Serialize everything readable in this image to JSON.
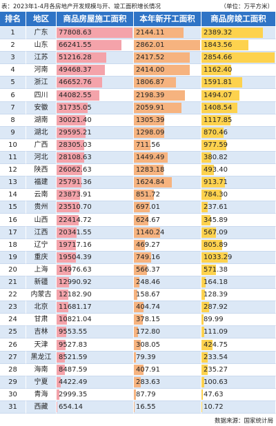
{
  "title": "表：2023年1-4月各房地产开发规模与开、竣工面积增长情况",
  "unit": "（单位：万平方米）",
  "source": "数据来源：国家统计局",
  "table": {
    "header": [
      "排名",
      "地区",
      "商品房屋施工面积",
      "本年新开工面积",
      "商品房竣工面积"
    ],
    "rows": [
      [
        "1",
        "广东",
        "77808.63",
        "2144.11",
        "2389.32"
      ],
      [
        "2",
        "山东",
        "66241.55",
        "2862.01",
        "1843.56"
      ],
      [
        "3",
        "江苏",
        "51216.28",
        "2417.52",
        "2854.66"
      ],
      [
        "4",
        "河南",
        "49468.37",
        "2414.00",
        "1162.40"
      ],
      [
        "5",
        "浙江",
        "46652.76",
        "1806.87",
        "1591.81"
      ],
      [
        "6",
        "四川",
        "44082.55",
        "2198.39",
        "1494.07"
      ],
      [
        "7",
        "安徽",
        "31735.05",
        "2059.91",
        "1408.54"
      ],
      [
        "8",
        "湖南",
        "30021.40",
        "1305.39",
        "1117.85"
      ],
      [
        "9",
        "湖北",
        "29595.21",
        "1298.09",
        "870.46"
      ],
      [
        "10",
        "广西",
        "28305.03",
        "711.56",
        "977.59"
      ],
      [
        "11",
        "河北",
        "28108.63",
        "1449.49",
        "380.82"
      ],
      [
        "12",
        "陕西",
        "26062.63",
        "1283.18",
        "493.40"
      ],
      [
        "13",
        "福建",
        "25791.36",
        "1624.84",
        "913.71"
      ],
      [
        "14",
        "云南",
        "23873.91",
        "851.72",
        "784.30"
      ],
      [
        "15",
        "贵州",
        "23510.70",
        "697.01",
        "237.61"
      ],
      [
        "16",
        "山西",
        "22414.72",
        "624.67",
        "345.89"
      ],
      [
        "17",
        "江西",
        "20341.55",
        "1140.24",
        "567.09"
      ],
      [
        "18",
        "辽宁",
        "19717.16",
        "469.27",
        "805.89"
      ],
      [
        "19",
        "重庆",
        "19504.39",
        "749.16",
        "1033.29"
      ],
      [
        "20",
        "上海",
        "14976.63",
        "566.37",
        "571.38"
      ],
      [
        "21",
        "新疆",
        "12990.92",
        "248.46",
        "164.18"
      ],
      [
        "22",
        "内蒙古",
        "12182.90",
        "158.67",
        "128.39"
      ],
      [
        "23",
        "北京",
        "11681.17",
        "404.74",
        "287.92"
      ],
      [
        "24",
        "甘肃",
        "10821.04",
        "378.15",
        "89.99"
      ],
      [
        "25",
        "吉林",
        "9553.55",
        "172.80",
        "111.09"
      ],
      [
        "26",
        "天津",
        "9527.83",
        "308.05",
        "424.75"
      ],
      [
        "27",
        "黑龙江",
        "8521.59",
        "79.39",
        "233.54"
      ],
      [
        "28",
        "海南",
        "8487.59",
        "407.91",
        "235.27"
      ],
      [
        "29",
        "宁夏",
        "4422.49",
        "283.63",
        "100.63"
      ],
      [
        "30",
        "青海",
        "2999.35",
        "87.79",
        "47.63"
      ],
      [
        "31",
        "西藏",
        "654.14",
        "16.55",
        "10.72"
      ]
    ],
    "bar_colors": [
      "#f4a3aa",
      "#f6b37f",
      "#fdd24e"
    ]
  }
}
